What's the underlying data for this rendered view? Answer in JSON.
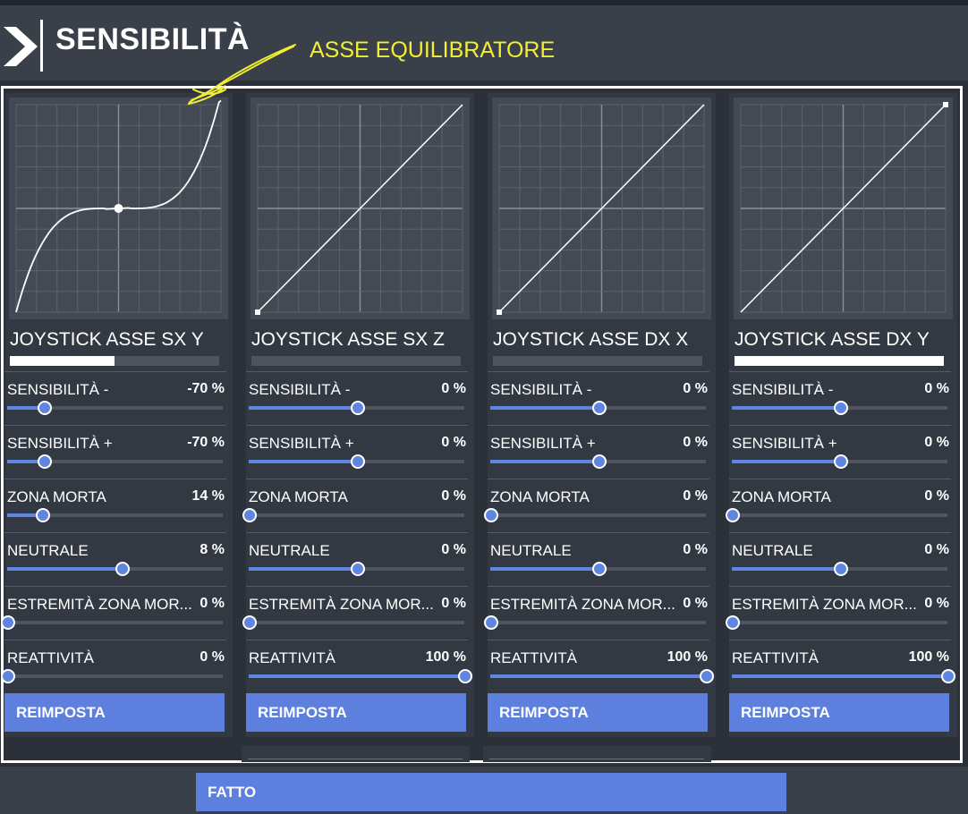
{
  "header": {
    "title": "SENSIBILITÀ",
    "annotation": "ASSE EQUILIBRATORE"
  },
  "colors": {
    "accent": "#5d80df",
    "annotation": "#f2ee33",
    "panel": "#333942",
    "graph": "#444a53"
  },
  "icons": {
    "logo": "chevron-right-logo-icon"
  },
  "panels": [
    {
      "name": "JOYSTICK ASSE SX Y",
      "input_fraction": 0.5,
      "curve_type": "s-curve",
      "sliders": [
        {
          "label": "SENSIBILITÀ -",
          "value": "-70 %",
          "level": 0.17
        },
        {
          "label": "SENSIBILITÀ +",
          "value": "-70 %",
          "level": 0.17
        },
        {
          "label": "ZONA MORTA",
          "value": "14 %",
          "level": 0.16
        },
        {
          "label": "NEUTRALE",
          "value": "8 %",
          "level": 0.53
        },
        {
          "label": "ESTREMITÀ ZONA MOR...",
          "value": "0 %",
          "level": 0
        },
        {
          "label": "REATTIVITÀ",
          "value": "0 %",
          "level": 0
        }
      ],
      "reset_label": "REIMPOSTA"
    },
    {
      "name": "JOYSTICK ASSE SX Z",
      "input_fraction": 0,
      "curve_type": "linear",
      "sliders": [
        {
          "label": "SENSIBILITÀ -",
          "value": "0 %",
          "level": 0.5
        },
        {
          "label": "SENSIBILITÀ +",
          "value": "0 %",
          "level": 0.5
        },
        {
          "label": "ZONA MORTA",
          "value": "0 %",
          "level": 0
        },
        {
          "label": "NEUTRALE",
          "value": "0 %",
          "level": 0.5
        },
        {
          "label": "ESTREMITÀ ZONA MOR...",
          "value": "0 %",
          "level": 0
        },
        {
          "label": "REATTIVITÀ",
          "value": "100 %",
          "level": 1
        }
      ],
      "reset_label": "REIMPOSTA"
    },
    {
      "name": "JOYSTICK ASSE DX X",
      "input_fraction": 0,
      "curve_type": "linear",
      "sliders": [
        {
          "label": "SENSIBILITÀ -",
          "value": "0 %",
          "level": 0.5
        },
        {
          "label": "SENSIBILITÀ +",
          "value": "0 %",
          "level": 0.5
        },
        {
          "label": "ZONA MORTA",
          "value": "0 %",
          "level": 0
        },
        {
          "label": "NEUTRALE",
          "value": "0 %",
          "level": 0.5
        },
        {
          "label": "ESTREMITÀ ZONA MOR...",
          "value": "0 %",
          "level": 0
        },
        {
          "label": "REATTIVITÀ",
          "value": "100 %",
          "level": 1
        }
      ],
      "reset_label": "REIMPOSTA"
    },
    {
      "name": "JOYSTICK ASSE DX Y",
      "input_fraction": 1,
      "curve_type": "linear",
      "sliders": [
        {
          "label": "SENSIBILITÀ -",
          "value": "0 %",
          "level": 0.5
        },
        {
          "label": "SENSIBILITÀ +",
          "value": "0 %",
          "level": 0.5
        },
        {
          "label": "ZONA MORTA",
          "value": "0 %",
          "level": 0
        },
        {
          "label": "NEUTRALE",
          "value": "0 %",
          "level": 0.5
        },
        {
          "label": "ESTREMITÀ ZONA MOR...",
          "value": "0 %",
          "level": 0
        },
        {
          "label": "REATTIVITÀ",
          "value": "100 %",
          "level": 1
        }
      ],
      "reset_label": "REIMPOSTA"
    }
  ],
  "footer": {
    "done_label": "FATTO"
  }
}
